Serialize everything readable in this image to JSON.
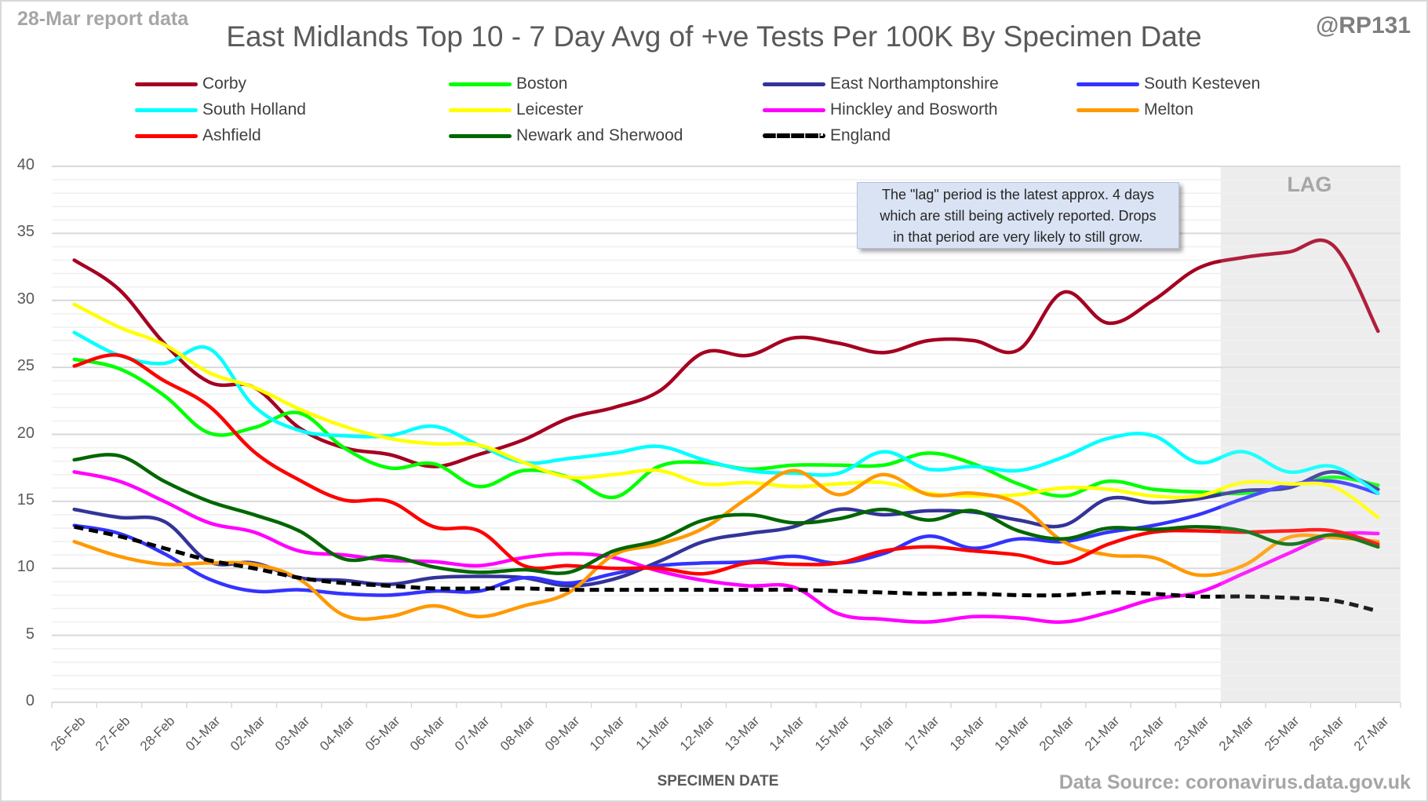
{
  "header": {
    "report_date": "28-Mar report data",
    "handle": "@RP131",
    "source": "Data Source: coronavirus.data.gov.uk"
  },
  "callout": {
    "lines": [
      "The \"lag\" period is the latest approx. 4 days",
      "which are still being actively reported.  Drops",
      "in that period are very likely to still grow."
    ]
  },
  "chart_data": {
    "type": "line",
    "title": "East Midlands Top 10 - 7 Day Avg of +ve Tests Per 100K By Specimen Date",
    "xlabel": "SPECIMEN DATE",
    "ylabel": "",
    "ylim": [
      0,
      40
    ],
    "yticks": [
      0,
      5,
      10,
      15,
      20,
      25,
      30,
      35,
      40
    ],
    "grid": true,
    "legend_position": "top",
    "lag_label": "LAG",
    "lag_start_category": "24-Mar",
    "categories": [
      "26-Feb",
      "27-Feb",
      "28-Feb",
      "01-Mar",
      "02-Mar",
      "03-Mar",
      "04-Mar",
      "05-Mar",
      "06-Mar",
      "07-Mar",
      "08-Mar",
      "09-Mar",
      "10-Mar",
      "11-Mar",
      "12-Mar",
      "13-Mar",
      "14-Mar",
      "15-Mar",
      "16-Mar",
      "17-Mar",
      "18-Mar",
      "19-Mar",
      "20-Mar",
      "21-Mar",
      "22-Mar",
      "23-Mar",
      "24-Mar",
      "25-Mar",
      "26-Mar",
      "27-Mar"
    ],
    "series": [
      {
        "name": "Corby",
        "color": "#a50021",
        "dashed": false,
        "values": [
          33.0,
          30.8,
          26.8,
          23.9,
          23.5,
          20.5,
          19.0,
          18.5,
          17.6,
          18.5,
          19.6,
          21.2,
          22.0,
          23.2,
          26.1,
          25.9,
          27.2,
          26.8,
          26.1,
          27.0,
          27.0,
          26.3,
          30.6,
          28.3,
          30.0,
          32.4,
          33.2,
          33.6,
          34.1,
          27.7
        ]
      },
      {
        "name": "Boston",
        "color": "#00ff00",
        "dashed": false,
        "values": [
          25.6,
          24.9,
          22.9,
          20.1,
          20.5,
          21.6,
          19.0,
          17.5,
          17.8,
          16.1,
          17.3,
          16.8,
          15.3,
          17.6,
          17.9,
          17.4,
          17.7,
          17.7,
          17.7,
          18.6,
          17.8,
          16.3,
          15.4,
          16.5,
          15.9,
          15.7,
          15.6,
          16.1,
          16.8,
          16.2
        ]
      },
      {
        "name": "East Northamptonshire",
        "color": "#333399",
        "dashed": false,
        "values": [
          14.4,
          13.8,
          13.5,
          10.5,
          10.4,
          9.3,
          9.1,
          8.8,
          9.3,
          9.4,
          9.3,
          8.7,
          9.2,
          10.5,
          12.0,
          12.6,
          13.1,
          14.4,
          14.0,
          14.3,
          14.2,
          13.6,
          13.2,
          15.2,
          14.9,
          15.2,
          15.8,
          16.0,
          17.2,
          15.9
        ]
      },
      {
        "name": "South Kesteven",
        "color": "#3333ff",
        "dashed": false,
        "values": [
          13.2,
          12.6,
          11.1,
          9.2,
          8.3,
          8.4,
          8.1,
          8.0,
          8.3,
          8.3,
          9.3,
          8.9,
          9.6,
          10.2,
          10.4,
          10.5,
          10.9,
          10.4,
          11.1,
          12.4,
          11.5,
          12.2,
          12.0,
          12.7,
          13.2,
          14.0,
          15.2,
          16.2,
          16.5,
          15.6
        ]
      },
      {
        "name": "South Holland",
        "color": "#00ffff",
        "dashed": false,
        "values": [
          27.6,
          25.9,
          25.3,
          26.4,
          22.1,
          20.3,
          19.9,
          19.9,
          20.6,
          19.2,
          17.9,
          18.2,
          18.6,
          19.1,
          18.1,
          17.3,
          17.1,
          17.1,
          18.7,
          17.4,
          17.6,
          17.3,
          18.3,
          19.7,
          19.9,
          17.9,
          18.7,
          17.2,
          17.6,
          15.6
        ]
      },
      {
        "name": "Leicester",
        "color": "#ffff00",
        "dashed": false,
        "values": [
          29.7,
          28.0,
          26.7,
          24.6,
          23.5,
          21.9,
          20.6,
          19.7,
          19.3,
          19.2,
          17.9,
          16.8,
          17.0,
          17.3,
          16.3,
          16.4,
          16.1,
          16.3,
          16.4,
          15.6,
          15.4,
          15.5,
          16.0,
          15.9,
          15.4,
          15.4,
          16.4,
          16.3,
          16.1,
          13.8
        ]
      },
      {
        "name": "Hinckley and Bosworth",
        "color": "#ff00ff",
        "dashed": false,
        "values": [
          17.2,
          16.5,
          15.0,
          13.4,
          12.7,
          11.3,
          11.0,
          10.6,
          10.5,
          10.2,
          10.8,
          11.1,
          10.8,
          9.8,
          9.1,
          8.7,
          8.6,
          6.6,
          6.2,
          6.0,
          6.4,
          6.3,
          6.0,
          6.7,
          7.7,
          8.2,
          9.6,
          11.1,
          12.5,
          12.6
        ]
      },
      {
        "name": "Melton",
        "color": "#ff9900",
        "dashed": false,
        "values": [
          12.0,
          10.9,
          10.3,
          10.4,
          10.3,
          9.2,
          6.5,
          6.4,
          7.2,
          6.4,
          7.2,
          8.2,
          11.0,
          11.8,
          13.0,
          15.3,
          17.3,
          15.5,
          17.0,
          15.5,
          15.6,
          14.8,
          12.0,
          11.0,
          10.8,
          9.5,
          10.2,
          12.3,
          12.3,
          12.0
        ]
      },
      {
        "name": "Ashfield",
        "color": "#ff0000",
        "dashed": false,
        "values": [
          25.1,
          25.9,
          24.0,
          22.1,
          18.7,
          16.6,
          15.1,
          15.0,
          13.1,
          12.8,
          10.2,
          10.2,
          10.0,
          10.0,
          9.6,
          10.4,
          10.3,
          10.4,
          11.3,
          11.6,
          11.3,
          11.0,
          10.4,
          11.8,
          12.7,
          12.8,
          12.7,
          12.8,
          12.8,
          11.8
        ]
      },
      {
        "name": "Newark and Sherwood",
        "color": "#006600",
        "dashed": false,
        "values": [
          18.1,
          18.4,
          16.5,
          15.0,
          14.0,
          12.8,
          10.7,
          10.9,
          10.1,
          9.7,
          9.9,
          9.7,
          11.3,
          12.1,
          13.6,
          14.0,
          13.4,
          13.7,
          14.4,
          13.6,
          14.3,
          12.8,
          12.2,
          13.0,
          12.9,
          13.1,
          12.8,
          11.8,
          12.5,
          11.6
        ]
      },
      {
        "name": "England",
        "color": "#000000",
        "dashed": true,
        "values": [
          13.1,
          12.4,
          11.5,
          10.6,
          10.0,
          9.3,
          8.9,
          8.7,
          8.5,
          8.5,
          8.5,
          8.4,
          8.4,
          8.4,
          8.4,
          8.4,
          8.4,
          8.3,
          8.2,
          8.1,
          8.1,
          8.0,
          8.0,
          8.2,
          8.1,
          7.9,
          7.9,
          7.8,
          7.6,
          6.8
        ]
      }
    ]
  }
}
